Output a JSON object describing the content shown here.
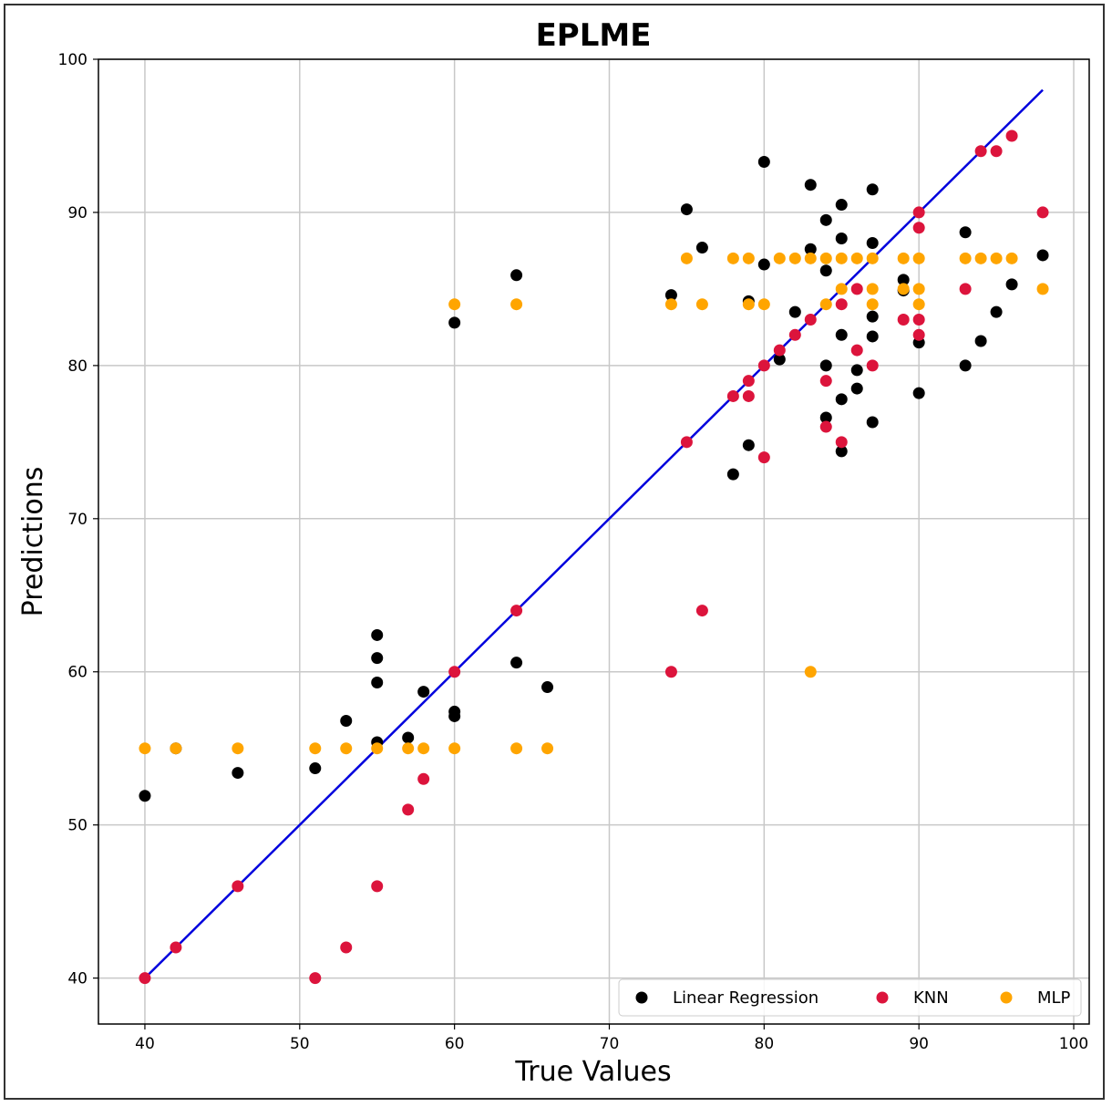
{
  "chart_data": {
    "type": "scatter",
    "title": "EPLME",
    "xlabel": "True Values",
    "ylabel": "Predictions",
    "xlim": [
      37,
      101
    ],
    "ylim": [
      37,
      100
    ],
    "xticks": [
      40,
      50,
      60,
      70,
      80,
      90,
      100
    ],
    "yticks": [
      40,
      50,
      60,
      70,
      80,
      90,
      100
    ],
    "grid": true,
    "legend_position": "bottom-right",
    "reference_line": {
      "name": "Ideal",
      "color": "#0000dd",
      "x": [
        40,
        98
      ],
      "y": [
        40,
        98
      ]
    },
    "series": [
      {
        "name": "Linear Regression",
        "color": "#000000",
        "points": [
          [
            40,
            51.9
          ],
          [
            42,
            55
          ],
          [
            46,
            53.4
          ],
          [
            51,
            53.7
          ],
          [
            53,
            56.8
          ],
          [
            55,
            62.4
          ],
          [
            55,
            60.9
          ],
          [
            55,
            59.3
          ],
          [
            55,
            55.4
          ],
          [
            57,
            55.7
          ],
          [
            58,
            58.7
          ],
          [
            60,
            82.8
          ],
          [
            60,
            57.4
          ],
          [
            60,
            57.1
          ],
          [
            64,
            85.9
          ],
          [
            64,
            60.6
          ],
          [
            66,
            59
          ],
          [
            74,
            84.6
          ],
          [
            75,
            90.2
          ],
          [
            76,
            87.7
          ],
          [
            78,
            72.9
          ],
          [
            79,
            84.2
          ],
          [
            79,
            74.8
          ],
          [
            80,
            93.3
          ],
          [
            80,
            86.6
          ],
          [
            81,
            80.4
          ],
          [
            82,
            83.5
          ],
          [
            83,
            91.8
          ],
          [
            83,
            87.6
          ],
          [
            84,
            89.5
          ],
          [
            84,
            86.2
          ],
          [
            84,
            80
          ],
          [
            84,
            76.6
          ],
          [
            85,
            90.5
          ],
          [
            85,
            88.3
          ],
          [
            85,
            82
          ],
          [
            85,
            77.8
          ],
          [
            85,
            74.4
          ],
          [
            86,
            79.7
          ],
          [
            86,
            78.5
          ],
          [
            87,
            91.5
          ],
          [
            87,
            88
          ],
          [
            87,
            83.2
          ],
          [
            87,
            81.9
          ],
          [
            87,
            76.3
          ],
          [
            89,
            85.6
          ],
          [
            89,
            84.9
          ],
          [
            90,
            81.5
          ],
          [
            90,
            78.2
          ],
          [
            93,
            88.7
          ],
          [
            93,
            80
          ],
          [
            94,
            81.6
          ],
          [
            95,
            83.5
          ],
          [
            96,
            85.3
          ],
          [
            98,
            87.2
          ]
        ]
      },
      {
        "name": "KNN",
        "color": "#dc143c",
        "points": [
          [
            40,
            40
          ],
          [
            42,
            42
          ],
          [
            46,
            46
          ],
          [
            51,
            40
          ],
          [
            53,
            42
          ],
          [
            55,
            46
          ],
          [
            57,
            51
          ],
          [
            58,
            53
          ],
          [
            60,
            60
          ],
          [
            64,
            64
          ],
          [
            74,
            60
          ],
          [
            75,
            75
          ],
          [
            76,
            64
          ],
          [
            78,
            78
          ],
          [
            79,
            79
          ],
          [
            79,
            78
          ],
          [
            80,
            80
          ],
          [
            80,
            74
          ],
          [
            81,
            81
          ],
          [
            82,
            82
          ],
          [
            83,
            83
          ],
          [
            84,
            79
          ],
          [
            84,
            76
          ],
          [
            85,
            84
          ],
          [
            85,
            75
          ],
          [
            86,
            85
          ],
          [
            86,
            81
          ],
          [
            87,
            80
          ],
          [
            89,
            83
          ],
          [
            90,
            90
          ],
          [
            90,
            89
          ],
          [
            90,
            83
          ],
          [
            90,
            82
          ],
          [
            93,
            85
          ],
          [
            94,
            94
          ],
          [
            95,
            94
          ],
          [
            96,
            95
          ],
          [
            98,
            90
          ]
        ]
      },
      {
        "name": "MLP",
        "color": "#ffa500",
        "points": [
          [
            40,
            55
          ],
          [
            42,
            55
          ],
          [
            46,
            55
          ],
          [
            51,
            55
          ],
          [
            53,
            55
          ],
          [
            55,
            55
          ],
          [
            57,
            55
          ],
          [
            58,
            55
          ],
          [
            60,
            84
          ],
          [
            60,
            55
          ],
          [
            64,
            84
          ],
          [
            64,
            55
          ],
          [
            66,
            55
          ],
          [
            74,
            84
          ],
          [
            75,
            87
          ],
          [
            76,
            84
          ],
          [
            78,
            87
          ],
          [
            79,
            87
          ],
          [
            79,
            84
          ],
          [
            80,
            84
          ],
          [
            81,
            87
          ],
          [
            82,
            87
          ],
          [
            83,
            87
          ],
          [
            83,
            60
          ],
          [
            84,
            87
          ],
          [
            84,
            84
          ],
          [
            85,
            87
          ],
          [
            85,
            85
          ],
          [
            86,
            87
          ],
          [
            87,
            87
          ],
          [
            87,
            85
          ],
          [
            87,
            84
          ],
          [
            89,
            87
          ],
          [
            89,
            85
          ],
          [
            90,
            87
          ],
          [
            90,
            85
          ],
          [
            90,
            84
          ],
          [
            93,
            87
          ],
          [
            94,
            87
          ],
          [
            95,
            87
          ],
          [
            96,
            87
          ],
          [
            98,
            85
          ]
        ]
      }
    ]
  }
}
